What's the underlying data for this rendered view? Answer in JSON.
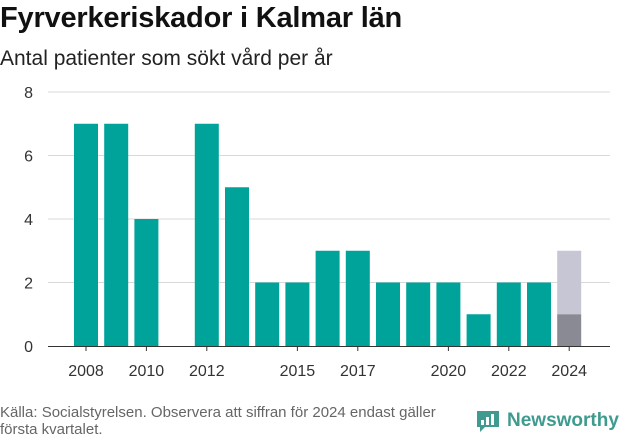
{
  "chart_data": {
    "type": "bar",
    "title": "Fyrverkeriskador i Kalmar län",
    "subtitle": "Antal patienter som sökt vård per år",
    "x": [
      2008,
      2009,
      2010,
      2011,
      2012,
      2013,
      2014,
      2015,
      2016,
      2017,
      2018,
      2019,
      2020,
      2021,
      2022,
      2023,
      2024
    ],
    "values": [
      7,
      7,
      4,
      0,
      7,
      5,
      2,
      2,
      3,
      3,
      2,
      2,
      2,
      1,
      2,
      2,
      1
    ],
    "partial_2024": {
      "x": 2024,
      "first_quarter": 1,
      "projected_total": 3
    },
    "x_tick_labels": [
      "2008",
      "2010",
      "2012",
      "2015",
      "2017",
      "2020",
      "2022",
      "2024"
    ],
    "y_ticks": [
      0,
      2,
      4,
      6,
      8
    ],
    "ylim": [
      0,
      8
    ],
    "grid": true,
    "colors": {
      "bar": "#00a39a",
      "partial_bar": "#8a8a94",
      "projected_bar": "#c7c6d4",
      "grid": "#d9d9d9"
    }
  },
  "footer": {
    "source": "Källa: Socialstyrelsen. Observera att siffran för 2024 endast gäller första kvartalet.",
    "brand": "Newsworthy"
  },
  "colors": {
    "brand": "#3f9b8f"
  }
}
